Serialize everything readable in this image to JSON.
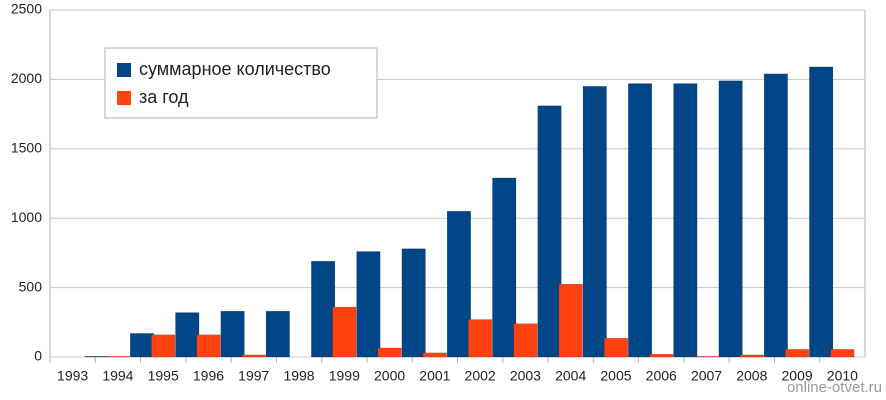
{
  "chart_data": {
    "type": "bar",
    "categories": [
      "1993",
      "1994",
      "1995",
      "1996",
      "1997",
      "1998",
      "1999",
      "2000",
      "2001",
      "2002",
      "2003",
      "2004",
      "2005",
      "2006",
      "2007",
      "2008",
      "2009",
      "2010"
    ],
    "series": [
      {
        "name": "суммарное количество",
        "color": "#004586",
        "values": [
          0,
          5,
          170,
          320,
          330,
          330,
          690,
          760,
          780,
          1050,
          1290,
          1810,
          1950,
          1970,
          1970,
          1990,
          2040,
          2090
        ]
      },
      {
        "name": "за год",
        "color": "#ff420e",
        "values": [
          0,
          5,
          160,
          160,
          15,
          0,
          360,
          65,
          30,
          270,
          240,
          525,
          135,
          20,
          5,
          15,
          55,
          55
        ]
      }
    ],
    "ylim": [
      0,
      2500
    ],
    "yticks": [
      0,
      500,
      1000,
      1500,
      2000,
      2500
    ],
    "grid": true,
    "watermark": "online-otvet.ru"
  }
}
